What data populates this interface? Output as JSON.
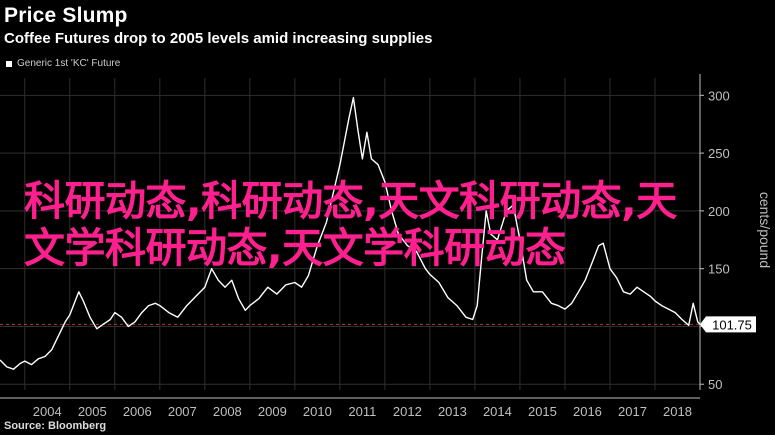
{
  "header": {
    "title": "Price Slump",
    "subtitle": "Coffee Futures drop to 2005 levels amid increasing supplies",
    "legend_label": "Generic 1st 'KC' Future"
  },
  "footer": {
    "source": "Source: Bloomberg"
  },
  "overlay": {
    "watermark_text": "科研动态,科研动态,天文科研动态,天文学科研动态,天文学科研动态"
  },
  "colors": {
    "background": "#000000",
    "series_line": "#ffffff",
    "reference_line": "#b5344a",
    "grid": "#2f2f2f",
    "axis_text": "#bfbfbf",
    "watermark": "#ff1f8e"
  },
  "chart_data": {
    "type": "line",
    "title": "Price Slump",
    "subtitle": "Coffee Futures drop to 2005 levels amid increasing supplies",
    "ylabel": "cents/pound",
    "xlabel": "",
    "x_range": [
      2003.45,
      2019.0
    ],
    "ylim": [
      45,
      315
    ],
    "y_ticks": [
      50,
      100,
      150,
      200,
      250,
      300
    ],
    "x_tick_labels": [
      "2004",
      "2005",
      "2006",
      "2007",
      "2008",
      "2009",
      "2010",
      "2011",
      "2012",
      "2013",
      "2014",
      "2015",
      "2016",
      "2017",
      "2018"
    ],
    "grid": true,
    "legend_position": "top-left",
    "last_value_label": "101.75",
    "reference_line_value": 101.75,
    "series": [
      {
        "name": "Generic 1st 'KC' Future",
        "points": [
          [
            2003.45,
            71
          ],
          [
            2003.6,
            65
          ],
          [
            2003.75,
            63
          ],
          [
            2003.9,
            68
          ],
          [
            2004.0,
            70
          ],
          [
            2004.15,
            67
          ],
          [
            2004.3,
            72
          ],
          [
            2004.45,
            74
          ],
          [
            2004.6,
            80
          ],
          [
            2004.75,
            92
          ],
          [
            2004.9,
            104
          ],
          [
            2005.0,
            110
          ],
          [
            2005.1,
            120
          ],
          [
            2005.2,
            130
          ],
          [
            2005.3,
            122
          ],
          [
            2005.45,
            108
          ],
          [
            2005.6,
            98
          ],
          [
            2005.75,
            102
          ],
          [
            2005.9,
            106
          ],
          [
            2006.0,
            112
          ],
          [
            2006.15,
            108
          ],
          [
            2006.3,
            100
          ],
          [
            2006.45,
            104
          ],
          [
            2006.6,
            112
          ],
          [
            2006.75,
            118
          ],
          [
            2006.9,
            120
          ],
          [
            2007.0,
            118
          ],
          [
            2007.2,
            112
          ],
          [
            2007.4,
            108
          ],
          [
            2007.6,
            118
          ],
          [
            2007.8,
            126
          ],
          [
            2008.0,
            134
          ],
          [
            2008.15,
            150
          ],
          [
            2008.3,
            140
          ],
          [
            2008.45,
            134
          ],
          [
            2008.6,
            140
          ],
          [
            2008.75,
            124
          ],
          [
            2008.9,
            114
          ],
          [
            2009.0,
            118
          ],
          [
            2009.2,
            124
          ],
          [
            2009.4,
            134
          ],
          [
            2009.6,
            128
          ],
          [
            2009.8,
            136
          ],
          [
            2010.0,
            138
          ],
          [
            2010.15,
            134
          ],
          [
            2010.3,
            144
          ],
          [
            2010.5,
            170
          ],
          [
            2010.7,
            190
          ],
          [
            2010.85,
            215
          ],
          [
            2011.0,
            240
          ],
          [
            2011.1,
            260
          ],
          [
            2011.2,
            280
          ],
          [
            2011.3,
            298
          ],
          [
            2011.4,
            270
          ],
          [
            2011.5,
            245
          ],
          [
            2011.6,
            268
          ],
          [
            2011.7,
            245
          ],
          [
            2011.85,
            240
          ],
          [
            2012.0,
            225
          ],
          [
            2012.15,
            200
          ],
          [
            2012.3,
            180
          ],
          [
            2012.5,
            170
          ],
          [
            2012.7,
            165
          ],
          [
            2012.9,
            150
          ],
          [
            2013.0,
            145
          ],
          [
            2013.2,
            138
          ],
          [
            2013.4,
            125
          ],
          [
            2013.6,
            118
          ],
          [
            2013.8,
            108
          ],
          [
            2013.95,
            106
          ],
          [
            2014.05,
            118
          ],
          [
            2014.15,
            160
          ],
          [
            2014.25,
            200
          ],
          [
            2014.35,
            180
          ],
          [
            2014.5,
            175
          ],
          [
            2014.7,
            200
          ],
          [
            2014.85,
            205
          ],
          [
            2015.0,
            175
          ],
          [
            2015.15,
            140
          ],
          [
            2015.3,
            130
          ],
          [
            2015.5,
            130
          ],
          [
            2015.7,
            120
          ],
          [
            2015.85,
            118
          ],
          [
            2016.0,
            115
          ],
          [
            2016.15,
            120
          ],
          [
            2016.3,
            130
          ],
          [
            2016.45,
            140
          ],
          [
            2016.6,
            155
          ],
          [
            2016.75,
            170
          ],
          [
            2016.85,
            172
          ],
          [
            2017.0,
            150
          ],
          [
            2017.15,
            142
          ],
          [
            2017.3,
            130
          ],
          [
            2017.45,
            128
          ],
          [
            2017.6,
            134
          ],
          [
            2017.75,
            130
          ],
          [
            2017.9,
            126
          ],
          [
            2018.0,
            122
          ],
          [
            2018.15,
            118
          ],
          [
            2018.3,
            115
          ],
          [
            2018.45,
            112
          ],
          [
            2018.6,
            106
          ],
          [
            2018.75,
            101
          ],
          [
            2018.85,
            120
          ],
          [
            2018.95,
            104
          ],
          [
            2019.0,
            101.75
          ]
        ]
      }
    ]
  }
}
